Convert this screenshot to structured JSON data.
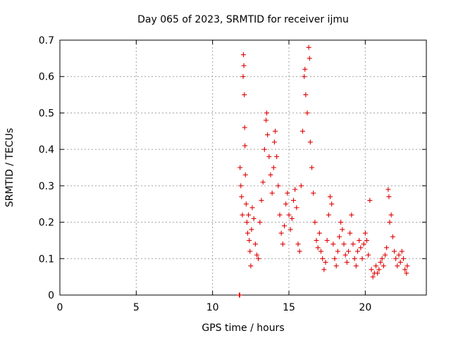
{
  "chart_data": {
    "type": "scatter",
    "title": "Day 065 of 2023, SRMTID for receiver ijmu",
    "xlabel": "GPS time / hours",
    "ylabel": "SRMTID / TECUs",
    "xlim": [
      0,
      24
    ],
    "ylim": [
      0,
      0.7
    ],
    "xticks": [
      "0",
      "5",
      "10",
      "15",
      "20"
    ],
    "xtick_values": [
      0,
      5,
      10,
      15,
      20
    ],
    "yticks": [
      "0",
      "0.1",
      "0.2",
      "0.3",
      "0.4",
      "0.5",
      "0.6",
      "0.7"
    ],
    "ytick_values": [
      0,
      0.1,
      0.2,
      0.3,
      0.4,
      0.5,
      0.6,
      0.7
    ],
    "grid": true,
    "marker": "+",
    "marker_color": "#e00000",
    "series": [
      {
        "name": "SRMTID",
        "points": [
          [
            11.75,
            0.0
          ],
          [
            11.78,
            0.0
          ],
          [
            11.8,
            0.35
          ],
          [
            11.85,
            0.3
          ],
          [
            11.9,
            0.27
          ],
          [
            11.95,
            0.22
          ],
          [
            12.0,
            0.6
          ],
          [
            12.02,
            0.66
          ],
          [
            12.05,
            0.63
          ],
          [
            12.08,
            0.55
          ],
          [
            12.1,
            0.46
          ],
          [
            12.12,
            0.41
          ],
          [
            12.15,
            0.33
          ],
          [
            12.2,
            0.25
          ],
          [
            12.25,
            0.2
          ],
          [
            12.3,
            0.17
          ],
          [
            12.35,
            0.22
          ],
          [
            12.4,
            0.15
          ],
          [
            12.45,
            0.12
          ],
          [
            12.5,
            0.08
          ],
          [
            12.55,
            0.18
          ],
          [
            12.6,
            0.24
          ],
          [
            12.7,
            0.21
          ],
          [
            12.8,
            0.14
          ],
          [
            12.9,
            0.11
          ],
          [
            13.0,
            0.1
          ],
          [
            13.1,
            0.2
          ],
          [
            13.2,
            0.26
          ],
          [
            13.3,
            0.31
          ],
          [
            13.4,
            0.4
          ],
          [
            13.5,
            0.48
          ],
          [
            13.55,
            0.5
          ],
          [
            13.6,
            0.44
          ],
          [
            13.7,
            0.38
          ],
          [
            13.8,
            0.33
          ],
          [
            13.9,
            0.28
          ],
          [
            14.0,
            0.35
          ],
          [
            14.05,
            0.42
          ],
          [
            14.1,
            0.45
          ],
          [
            14.2,
            0.38
          ],
          [
            14.3,
            0.3
          ],
          [
            14.4,
            0.22
          ],
          [
            14.5,
            0.17
          ],
          [
            14.6,
            0.14
          ],
          [
            14.7,
            0.19
          ],
          [
            14.8,
            0.25
          ],
          [
            14.9,
            0.28
          ],
          [
            15.0,
            0.22
          ],
          [
            15.1,
            0.18
          ],
          [
            15.2,
            0.21
          ],
          [
            15.3,
            0.26
          ],
          [
            15.4,
            0.29
          ],
          [
            15.5,
            0.24
          ],
          [
            15.6,
            0.14
          ],
          [
            15.7,
            0.12
          ],
          [
            15.8,
            0.3
          ],
          [
            15.9,
            0.45
          ],
          [
            16.0,
            0.6
          ],
          [
            16.05,
            0.62
          ],
          [
            16.1,
            0.55
          ],
          [
            16.2,
            0.5
          ],
          [
            16.3,
            0.68
          ],
          [
            16.35,
            0.65
          ],
          [
            16.4,
            0.42
          ],
          [
            16.5,
            0.35
          ],
          [
            16.6,
            0.28
          ],
          [
            16.7,
            0.2
          ],
          [
            16.8,
            0.15
          ],
          [
            16.9,
            0.13
          ],
          [
            17.0,
            0.17
          ],
          [
            17.1,
            0.12
          ],
          [
            17.2,
            0.1
          ],
          [
            17.3,
            0.07
          ],
          [
            17.4,
            0.09
          ],
          [
            17.5,
            0.15
          ],
          [
            17.6,
            0.22
          ],
          [
            17.7,
            0.27
          ],
          [
            17.8,
            0.25
          ],
          [
            17.9,
            0.14
          ],
          [
            18.0,
            0.1
          ],
          [
            18.1,
            0.08
          ],
          [
            18.2,
            0.12
          ],
          [
            18.3,
            0.16
          ],
          [
            18.4,
            0.2
          ],
          [
            18.5,
            0.18
          ],
          [
            18.6,
            0.14
          ],
          [
            18.7,
            0.11
          ],
          [
            18.8,
            0.09
          ],
          [
            18.9,
            0.12
          ],
          [
            19.0,
            0.17
          ],
          [
            19.1,
            0.22
          ],
          [
            19.2,
            0.14
          ],
          [
            19.3,
            0.1
          ],
          [
            19.4,
            0.08
          ],
          [
            19.5,
            0.12
          ],
          [
            19.6,
            0.15
          ],
          [
            19.7,
            0.13
          ],
          [
            19.8,
            0.1
          ],
          [
            19.9,
            0.14
          ],
          [
            20.0,
            0.17
          ],
          [
            20.1,
            0.15
          ],
          [
            20.2,
            0.11
          ],
          [
            20.3,
            0.26
          ],
          [
            20.4,
            0.07
          ],
          [
            20.5,
            0.05
          ],
          [
            20.6,
            0.06
          ],
          [
            20.7,
            0.08
          ],
          [
            20.8,
            0.06
          ],
          [
            20.9,
            0.07
          ],
          [
            21.0,
            0.09
          ],
          [
            21.1,
            0.1
          ],
          [
            21.2,
            0.08
          ],
          [
            21.3,
            0.11
          ],
          [
            21.4,
            0.13
          ],
          [
            21.5,
            0.29
          ],
          [
            21.55,
            0.27
          ],
          [
            21.6,
            0.2
          ],
          [
            21.7,
            0.22
          ],
          [
            21.8,
            0.16
          ],
          [
            21.9,
            0.12
          ],
          [
            22.0,
            0.1
          ],
          [
            22.1,
            0.08
          ],
          [
            22.2,
            0.11
          ],
          [
            22.3,
            0.09
          ],
          [
            22.4,
            0.12
          ],
          [
            22.5,
            0.1
          ],
          [
            22.6,
            0.07
          ],
          [
            22.7,
            0.06
          ],
          [
            22.75,
            0.08
          ]
        ]
      }
    ]
  }
}
